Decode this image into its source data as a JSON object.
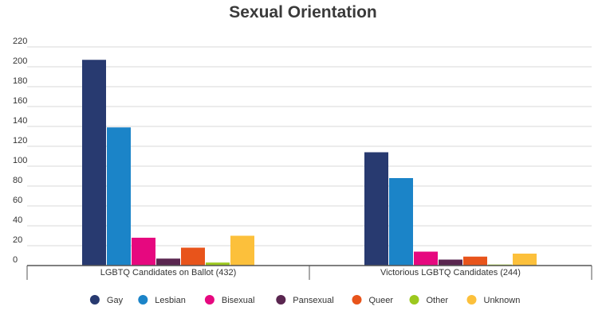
{
  "chart_data": {
    "type": "bar",
    "title": "Sexual Orientation",
    "xlabel": "",
    "ylabel": "",
    "categories": [
      "LGBTQ Candidates on Ballot (432)",
      "Victorious LGBTQ Candidates (244)"
    ],
    "yticks": [
      0,
      20,
      40,
      60,
      80,
      100,
      120,
      140,
      160,
      180,
      200,
      220
    ],
    "ylim": [
      0,
      220
    ],
    "grid": true,
    "legend_position": "bottom",
    "series": [
      {
        "name": "Gay",
        "color": "#283a70",
        "values": [
          207,
          114
        ]
      },
      {
        "name": "Lesbian",
        "color": "#1b84c8",
        "values": [
          139,
          88
        ]
      },
      {
        "name": "Bisexual",
        "color": "#e6087f",
        "values": [
          28,
          14
        ]
      },
      {
        "name": "Pansexual",
        "color": "#5a2650",
        "values": [
          7,
          6
        ]
      },
      {
        "name": "Queer",
        "color": "#e8541b",
        "values": [
          18,
          9
        ]
      },
      {
        "name": "Other",
        "color": "#9cc81e",
        "values": [
          3,
          1
        ]
      },
      {
        "name": "Unknown",
        "color": "#fcc03b",
        "values": [
          30,
          12
        ]
      }
    ]
  }
}
